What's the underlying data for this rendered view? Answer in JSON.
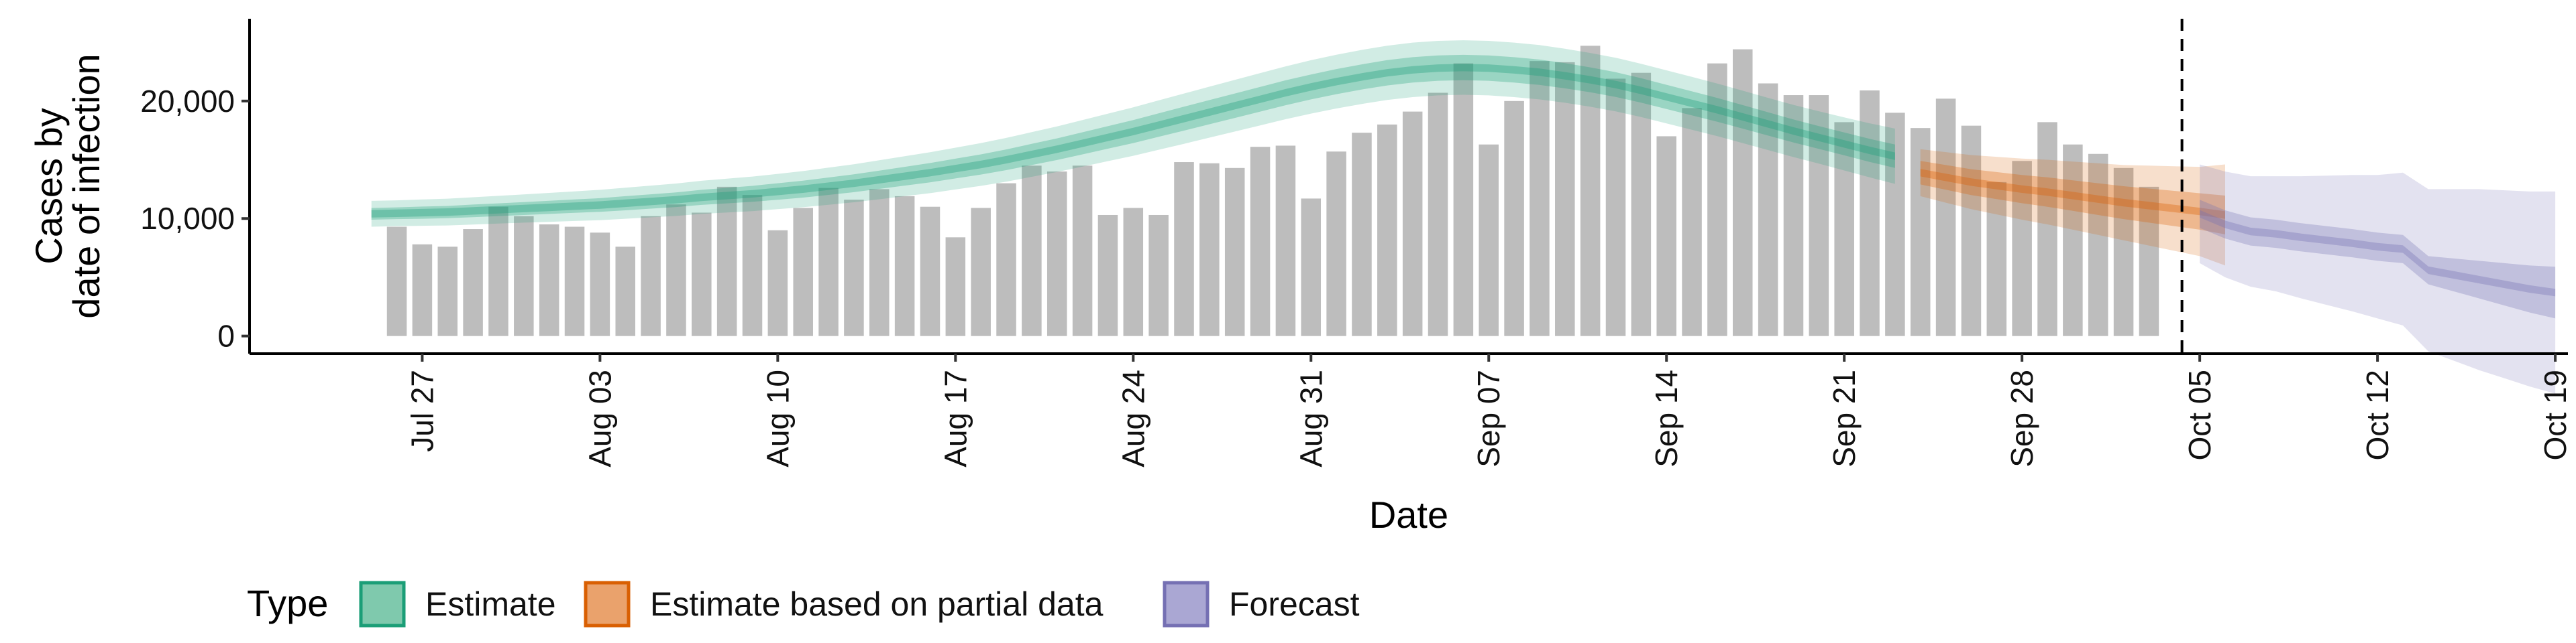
{
  "chart_data": {
    "type": "bar",
    "xlabel": "Date",
    "ylabel_lines": [
      "Cases by",
      "date of infection"
    ],
    "yticks": [
      0,
      10000,
      20000
    ],
    "ytick_labels": [
      "0",
      "10,000",
      "20,000"
    ],
    "ylim": [
      -1500,
      27000
    ],
    "x_range_days": [
      -3.8,
      87.5
    ],
    "x_origin": "Jul 24",
    "xticks": [
      {
        "day": 3,
        "label": "Jul 27"
      },
      {
        "day": 10,
        "label": "Aug 03"
      },
      {
        "day": 17,
        "label": "Aug 10"
      },
      {
        "day": 24,
        "label": "Aug 17"
      },
      {
        "day": 31,
        "label": "Aug 24"
      },
      {
        "day": 38,
        "label": "Aug 31"
      },
      {
        "day": 45,
        "label": "Sep 07"
      },
      {
        "day": 52,
        "label": "Sep 14"
      },
      {
        "day": 59,
        "label": "Sep 21"
      },
      {
        "day": 66,
        "label": "Sep 28"
      },
      {
        "day": 73,
        "label": "Oct 05"
      },
      {
        "day": 80,
        "label": "Oct 12"
      },
      {
        "day": 87,
        "label": "Oct 19"
      }
    ],
    "bars": {
      "start_day": 2,
      "color": "#bdbdbd",
      "values": [
        9300,
        7800,
        7600,
        9100,
        11000,
        10200,
        9500,
        9300,
        8800,
        7600,
        10200,
        11200,
        10500,
        12700,
        12000,
        9000,
        10900,
        12600,
        11600,
        12500,
        11900,
        11000,
        8400,
        10900,
        13000,
        14500,
        14000,
        14500,
        10300,
        10900,
        10300,
        14800,
        14700,
        14300,
        16100,
        16200,
        11700,
        15700,
        17300,
        18000,
        19100,
        20700,
        23200,
        16300,
        20000,
        23400,
        23300,
        24700,
        21900,
        22400,
        17000,
        19400,
        23200,
        24400,
        21500,
        20500,
        20500,
        18200,
        20900,
        19000,
        17700,
        20200,
        17900,
        13100,
        14900,
        18200,
        16300,
        15500,
        14300,
        12700
      ]
    },
    "series": [
      {
        "name": "Estimate",
        "color": "#1b9e77",
        "start_day": 1,
        "median": [
          10400,
          10450,
          10500,
          10550,
          10650,
          10750,
          10850,
          10950,
          11050,
          11150,
          11300,
          11450,
          11600,
          11800,
          11950,
          12100,
          12300,
          12500,
          12750,
          13000,
          13300,
          13600,
          13900,
          14250,
          14600,
          15000,
          15450,
          15900,
          16400,
          16900,
          17400,
          17950,
          18500,
          19050,
          19600,
          20150,
          20700,
          21200,
          21650,
          22050,
          22400,
          22650,
          22800,
          22850,
          22800,
          22650,
          22450,
          22150,
          21800,
          21400,
          20900,
          20350,
          19800,
          19250,
          18650,
          18050,
          17450,
          16900,
          16350,
          15800,
          15300
        ],
        "inner_spread": [
          500,
          500,
          520,
          520,
          540,
          540,
          550,
          560,
          570,
          580,
          600,
          610,
          620,
          640,
          660,
          680,
          700,
          720,
          740,
          760,
          780,
          800,
          820,
          840,
          860,
          880,
          900,
          920,
          940,
          960,
          980,
          1000,
          1020,
          1030,
          1040,
          1050,
          1060,
          1060,
          1070,
          1070,
          1080,
          1080,
          1080,
          1080,
          1080,
          1080,
          1080,
          1070,
          1060,
          1050,
          1040,
          1030,
          1020,
          1010,
          1000,
          990,
          980,
          970,
          970,
          980,
          1000
        ],
        "outer_spread": [
          1100,
          1100,
          1120,
          1140,
          1160,
          1180,
          1200,
          1230,
          1260,
          1290,
          1320,
          1350,
          1380,
          1410,
          1440,
          1470,
          1500,
          1540,
          1580,
          1620,
          1660,
          1700,
          1740,
          1780,
          1820,
          1860,
          1900,
          1940,
          1980,
          2020,
          2060,
          2100,
          2140,
          2170,
          2200,
          2230,
          2250,
          2270,
          2290,
          2300,
          2310,
          2320,
          2320,
          2320,
          2320,
          2320,
          2310,
          2300,
          2290,
          2280,
          2270,
          2260,
          2250,
          2240,
          2230,
          2220,
          2220,
          2230,
          2260,
          2300,
          2350
        ]
      },
      {
        "name": "Estimate based on partial data",
        "color": "#d95f02",
        "start_day": 62,
        "median": [
          13900,
          13500,
          13100,
          12800,
          12500,
          12250,
          11950,
          11650,
          11350,
          11100,
          10850,
          10600,
          10300
        ],
        "inner_spread": [
          1000,
          1050,
          1100,
          1150,
          1200,
          1250,
          1300,
          1350,
          1400,
          1450,
          1500,
          1550,
          1650
        ],
        "outer_spread": [
          2000,
          2150,
          2300,
          2450,
          2600,
          2750,
          2900,
          3050,
          3200,
          3400,
          3600,
          3800,
          4300
        ]
      },
      {
        "name": "Forecast",
        "color": "#7570b3",
        "start_day": 73,
        "median": [
          10400,
          9500,
          8900,
          8700,
          8400,
          8150,
          7900,
          7600,
          7400,
          5600,
          5200,
          4800,
          4400,
          4000,
          3700
        ],
        "inner_spread": [
          1200,
          1200,
          1200,
          1200,
          1200,
          1200,
          1200,
          1200,
          1200,
          1200,
          1400,
          1600,
          1800,
          2000,
          2200
        ],
        "outer_spread": [
          4200,
          4500,
          4700,
          4900,
          5200,
          5500,
          5800,
          6100,
          6500,
          6900,
          7300,
          7700,
          8000,
          8300,
          8600
        ]
      }
    ],
    "vline_day": 72.3,
    "legend": {
      "title": "Type",
      "placement": "bottom-left",
      "entries": [
        "Estimate",
        "Estimate based on partial data",
        "Forecast"
      ],
      "fills": [
        "#7fc9ad",
        "#eaa26c",
        "#aaa7d3"
      ],
      "strokes": [
        "#1b9e77",
        "#d95f02",
        "#7570b3"
      ]
    }
  }
}
